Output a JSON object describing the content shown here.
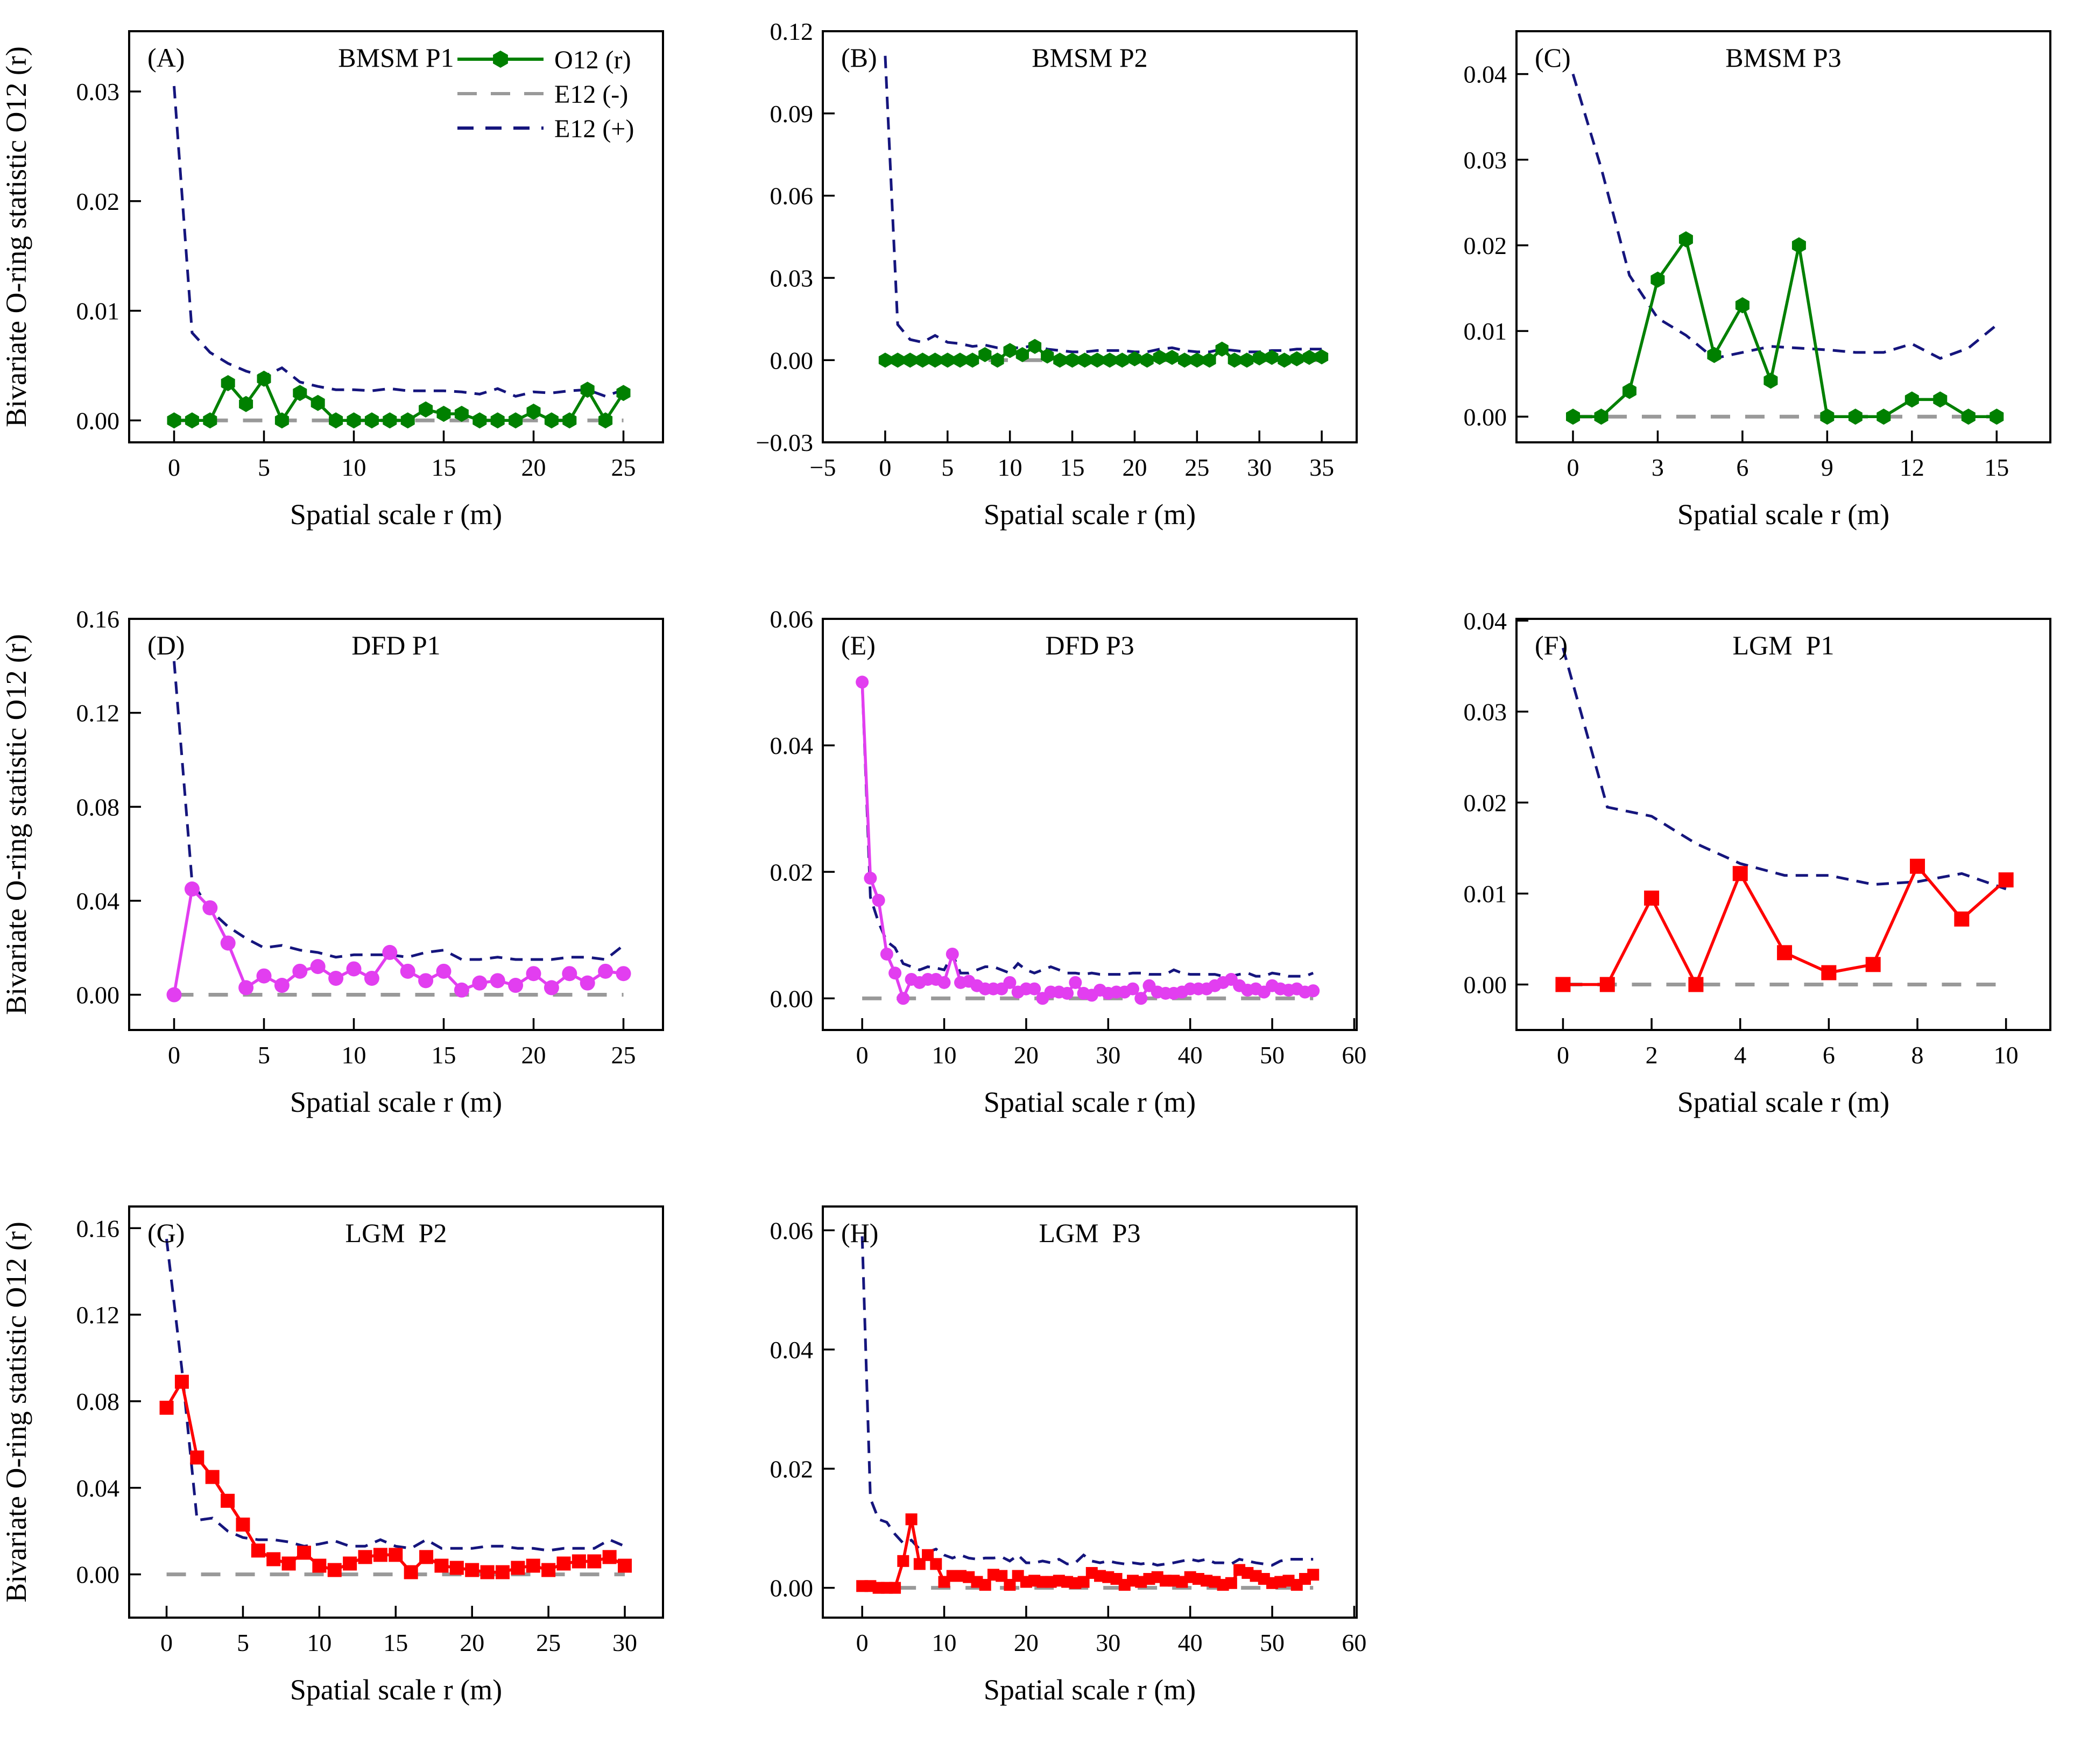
{
  "figure": {
    "ylabel": "Bivariate O-ring statistic O12 (r)",
    "xlabel": "Spatial scale r (m)",
    "legend": {
      "o12_label": "O12 (r)",
      "e12_minus_label": "E12 (-)",
      "e12_plus_label": "E12 (+)"
    },
    "colors": {
      "green": "#008000",
      "magenta": "#e23ef0",
      "red": "#fe0000",
      "envelope_upper": "#15157d",
      "envelope_lower": "#999999",
      "axis": "#000000",
      "background": "#ffffff"
    }
  },
  "chart_data": [
    {
      "id": "A",
      "type": "line",
      "panel_label": "(A)",
      "title": "BMSM P1",
      "color_key": "green",
      "marker": "hexagon",
      "marker_size": 15,
      "xlabel": "Spatial scale r (m)",
      "show_ylabel": true,
      "show_legend": true,
      "xlim": [
        -2.5,
        27.2
      ],
      "ylim": [
        -0.002,
        0.0355
      ],
      "xticks": [
        0,
        5,
        10,
        15,
        20,
        25
      ],
      "yticks": [
        0.0,
        0.01,
        0.02,
        0.03
      ],
      "y_decimals": 2,
      "x_start": 0,
      "x_step": 1,
      "o12": [
        0,
        0,
        0,
        0.0034,
        0.0015,
        0.0038,
        0,
        0.0025,
        0.0016,
        0,
        0,
        0,
        0,
        0,
        0.001,
        0.0006,
        0.0006,
        0,
        0,
        0,
        0.0008,
        0,
        0,
        0.0028,
        0,
        0.0025
      ],
      "e12_plus": [
        0.0305,
        0.008,
        0.0062,
        0.0052,
        0.0045,
        0.004,
        0.0048,
        0.0035,
        0.0031,
        0.0028,
        0.0028,
        0.0027,
        0.0029,
        0.0027,
        0.0027,
        0.0027,
        0.0026,
        0.0024,
        0.0029,
        0.0022,
        0.0026,
        0.0025,
        0.0027,
        0.0028,
        0.0022,
        0.0028
      ],
      "e12_minus_value": 0
    },
    {
      "id": "B",
      "type": "line",
      "panel_label": "(B)",
      "title": "BMSM P2",
      "color_key": "green",
      "marker": "hexagon",
      "marker_size": 14,
      "xlabel": "Spatial scale r (m)",
      "show_ylabel": false,
      "show_legend": false,
      "xlim": [
        -5,
        37.8
      ],
      "ylim": [
        -0.03,
        0.12
      ],
      "xticks": [
        -5,
        0,
        5,
        10,
        15,
        20,
        25,
        30,
        35
      ],
      "yticks": [
        -0.03,
        0.0,
        0.03,
        0.06,
        0.09,
        0.12
      ],
      "y_decimals": 2,
      "x_start": 0,
      "x_step": 1,
      "o12": [
        0,
        0,
        0,
        0,
        0,
        0,
        0,
        0,
        0.002,
        0,
        0.0035,
        0.002,
        0.005,
        0.0015,
        0,
        0,
        0,
        0,
        0,
        0,
        0.0005,
        0,
        0.001,
        0.001,
        0,
        0,
        0,
        0.004,
        0,
        0,
        0.0008,
        0.001,
        0,
        0.0005,
        0.001,
        0.0012
      ],
      "e12_plus": [
        0.111,
        0.013,
        0.0075,
        0.0065,
        0.009,
        0.0065,
        0.006,
        0.005,
        0.0055,
        0.0045,
        0.0045,
        0.0045,
        0.0055,
        0.004,
        0.0035,
        0.003,
        0.003,
        0.0035,
        0.0035,
        0.0035,
        0.003,
        0.003,
        0.004,
        0.0045,
        0.0035,
        0.003,
        0.003,
        0.004,
        0.0035,
        0.003,
        0.003,
        0.0035,
        0.0035,
        0.004,
        0.004,
        0.004
      ],
      "e12_minus_value": 0
    },
    {
      "id": "C",
      "type": "line",
      "panel_label": "(C)",
      "title": "BMSM P3",
      "color_key": "green",
      "marker": "hexagon",
      "marker_size": 15,
      "xlabel": "Spatial scale r (m)",
      "show_ylabel": false,
      "show_legend": false,
      "xlim": [
        -2,
        16.9
      ],
      "ylim": [
        -0.003,
        0.045
      ],
      "xticks": [
        0,
        3,
        6,
        9,
        12,
        15
      ],
      "yticks": [
        0.0,
        0.01,
        0.02,
        0.03,
        0.04
      ],
      "y_decimals": 2,
      "x_start": 0,
      "x_step": 1,
      "o12": [
        0,
        0,
        0.003,
        0.016,
        0.0207,
        0.0072,
        0.013,
        0.0042,
        0.02,
        0,
        0,
        0,
        0.002,
        0.002,
        0,
        0
      ],
      "e12_plus": [
        0.04,
        0.029,
        0.0165,
        0.0115,
        0.0095,
        0.0068,
        0.0075,
        0.0082,
        0.008,
        0.0078,
        0.0075,
        0.0075,
        0.0085,
        0.0068,
        0.008,
        0.0107
      ],
      "e12_minus_value": 0
    },
    {
      "id": "D",
      "type": "line",
      "panel_label": "(D)",
      "title": "DFD P1",
      "color_key": "magenta",
      "marker": "circle",
      "marker_size": 14,
      "xlabel": "Spatial scale r (m)",
      "show_ylabel": true,
      "show_legend": false,
      "xlim": [
        -2.5,
        27.2
      ],
      "ylim": [
        -0.015,
        0.16
      ],
      "xticks": [
        0,
        5,
        10,
        15,
        20,
        25
      ],
      "yticks": [
        0.0,
        0.04,
        0.08,
        0.12,
        0.16
      ],
      "y_decimals": 2,
      "x_start": 0,
      "x_step": 1,
      "o12": [
        0,
        0.045,
        0.037,
        0.022,
        0.003,
        0.008,
        0.004,
        0.01,
        0.012,
        0.007,
        0.011,
        0.007,
        0.018,
        0.01,
        0.006,
        0.01,
        0.002,
        0.005,
        0.006,
        0.004,
        0.009,
        0.003,
        0.009,
        0.005,
        0.01,
        0.009
      ],
      "e12_plus": [
        0.142,
        0.048,
        0.036,
        0.029,
        0.024,
        0.02,
        0.021,
        0.019,
        0.018,
        0.016,
        0.017,
        0.017,
        0.017,
        0.016,
        0.018,
        0.019,
        0.015,
        0.015,
        0.016,
        0.015,
        0.015,
        0.015,
        0.016,
        0.016,
        0.015,
        0.021
      ],
      "e12_minus_value": 0
    },
    {
      "id": "E",
      "type": "line",
      "panel_label": "(E)",
      "title": "DFD P3",
      "color_key": "magenta",
      "marker": "circle",
      "marker_size": 12,
      "xlabel": "Spatial scale r (m)",
      "show_ylabel": false,
      "show_legend": false,
      "xlim": [
        -4.8,
        60.3
      ],
      "ylim": [
        -0.005,
        0.06
      ],
      "xticks": [
        0,
        10,
        20,
        30,
        40,
        50,
        60
      ],
      "yticks": [
        0.0,
        0.02,
        0.04,
        0.06
      ],
      "y_decimals": 2,
      "x_start": 0,
      "x_step": 1,
      "o12": [
        0.05,
        0.019,
        0.0155,
        0.007,
        0.004,
        0,
        0.003,
        0.0025,
        0.003,
        0.003,
        0.0025,
        0.007,
        0.0025,
        0.0027,
        0.002,
        0.0015,
        0.0015,
        0.0015,
        0.0025,
        0.001,
        0.0015,
        0.0015,
        0,
        0.001,
        0.001,
        0.0008,
        0.0025,
        0.0008,
        0.0005,
        0.0013,
        0.0008,
        0.001,
        0.001,
        0.0015,
        0,
        0.002,
        0.001,
        0.0008,
        0.0008,
        0.001,
        0.0015,
        0.0015,
        0.0015,
        0.002,
        0.0025,
        0.003,
        0.002,
        0.0013,
        0.0015,
        0.001,
        0.002,
        0.0015,
        0.0013,
        0.0015,
        0.001,
        0.0012
      ],
      "e12_plus": [
        0.05,
        0.016,
        0.012,
        0.009,
        0.008,
        0.0055,
        0.005,
        0.0045,
        0.005,
        0.0048,
        0.0045,
        0.007,
        0.004,
        0.004,
        0.0045,
        0.005,
        0.005,
        0.0045,
        0.004,
        0.0055,
        0.0045,
        0.004,
        0.0045,
        0.005,
        0.0045,
        0.004,
        0.004,
        0.0038,
        0.004,
        0.0038,
        0.0038,
        0.0038,
        0.0038,
        0.004,
        0.004,
        0.0038,
        0.0038,
        0.0038,
        0.0045,
        0.004,
        0.0038,
        0.0038,
        0.0038,
        0.0038,
        0.0035,
        0.0035,
        0.0038,
        0.004,
        0.0035,
        0.0035,
        0.004,
        0.0038,
        0.0035,
        0.0035,
        0.0035,
        0.004
      ],
      "e12_minus_value": 0
    },
    {
      "id": "F",
      "type": "line",
      "panel_label": "(F)",
      "title": "LGM  P1",
      "color_key": "red",
      "marker": "square",
      "marker_size": 14,
      "xlabel": "Spatial scale r (m)",
      "show_ylabel": false,
      "show_legend": false,
      "xlim": [
        -1.05,
        11
      ],
      "ylim": [
        -0.005,
        0.0402
      ],
      "xticks": [
        0,
        2,
        4,
        6,
        8,
        10
      ],
      "yticks": [
        0.0,
        0.01,
        0.02,
        0.03,
        0.04
      ],
      "y_decimals": 2,
      "x_start": 0,
      "x_step": 1,
      "o12": [
        0,
        0,
        0.0095,
        0,
        0.0122,
        0.0035,
        0.0013,
        0.0022,
        0.013,
        0.0072,
        0.0115
      ],
      "e12_plus": [
        0.037,
        0.0195,
        0.0185,
        0.0155,
        0.0133,
        0.012,
        0.012,
        0.011,
        0.0113,
        0.0122,
        0.0105
      ],
      "e12_minus_value": 0
    },
    {
      "id": "G",
      "type": "line",
      "panel_label": "(G)",
      "title": "LGM  P2",
      "color_key": "red",
      "marker": "square",
      "marker_size": 13,
      "xlabel": "Spatial scale r (m)",
      "show_ylabel": true,
      "show_legend": false,
      "xlim": [
        -2.45,
        32.5
      ],
      "ylim": [
        -0.02,
        0.17
      ],
      "xticks": [
        0,
        5,
        10,
        15,
        20,
        25,
        30
      ],
      "yticks": [
        0.0,
        0.04,
        0.08,
        0.12,
        0.16
      ],
      "y_decimals": 2,
      "x_start": 0,
      "x_step": 1,
      "o12": [
        0.077,
        0.089,
        0.054,
        0.045,
        0.034,
        0.023,
        0.011,
        0.007,
        0.005,
        0.01,
        0.004,
        0.002,
        0.005,
        0.008,
        0.009,
        0.009,
        0.001,
        0.008,
        0.004,
        0.003,
        0.002,
        0.001,
        0.001,
        0.003,
        0.004,
        0.002,
        0.005,
        0.006,
        0.006,
        0.008,
        0.004
      ],
      "e12_plus": [
        0.155,
        0.095,
        0.025,
        0.026,
        0.02,
        0.017,
        0.016,
        0.016,
        0.015,
        0.013,
        0.014,
        0.0155,
        0.013,
        0.013,
        0.016,
        0.013,
        0.012,
        0.016,
        0.012,
        0.012,
        0.012,
        0.013,
        0.013,
        0.012,
        0.012,
        0.011,
        0.012,
        0.012,
        0.012,
        0.016,
        0.013
      ],
      "e12_minus_value": 0
    },
    {
      "id": "H",
      "type": "line",
      "panel_label": "(H)",
      "title": "LGM  P3",
      "color_key": "red",
      "marker": "square",
      "marker_size": 11,
      "xlabel": "Spatial scale r (m)",
      "show_ylabel": false,
      "show_legend": false,
      "xlim": [
        -4.8,
        60.3
      ],
      "ylim": [
        -0.005,
        0.064
      ],
      "xticks": [
        0,
        10,
        20,
        30,
        40,
        50,
        60
      ],
      "yticks": [
        0.0,
        0.02,
        0.04,
        0.06
      ],
      "y_decimals": 2,
      "x_start": 0,
      "x_step": 1,
      "o12": [
        0.0003,
        0.0003,
        0,
        0,
        0,
        0.0045,
        0.0115,
        0.004,
        0.0055,
        0.004,
        0.001,
        0.002,
        0.002,
        0.0018,
        0.001,
        0.0005,
        0.0022,
        0.002,
        0.0005,
        0.002,
        0.001,
        0.0012,
        0.001,
        0.001,
        0.0012,
        0.001,
        0.0008,
        0.001,
        0.0025,
        0.002,
        0.0018,
        0.0015,
        0.0005,
        0.0012,
        0.001,
        0.0015,
        0.0018,
        0.0012,
        0.0012,
        0.001,
        0.0018,
        0.0015,
        0.0012,
        0.001,
        0.0005,
        0.0008,
        0.003,
        0.0025,
        0.002,
        0.0015,
        0.0008,
        0.001,
        0.0012,
        0.0005,
        0.0015,
        0.0022
      ],
      "e12_plus": [
        0.059,
        0.015,
        0.0115,
        0.011,
        0.009,
        0.0075,
        0.008,
        0.0065,
        0.006,
        0.0065,
        0.0055,
        0.005,
        0.0055,
        0.005,
        0.0048,
        0.005,
        0.005,
        0.0052,
        0.0045,
        0.0055,
        0.0042,
        0.0042,
        0.0045,
        0.0042,
        0.0048,
        0.004,
        0.0042,
        0.0055,
        0.0045,
        0.0042,
        0.0045,
        0.0042,
        0.004,
        0.0042,
        0.004,
        0.0042,
        0.0038,
        0.004,
        0.0042,
        0.0045,
        0.0048,
        0.0045,
        0.0048,
        0.0042,
        0.0042,
        0.004,
        0.0048,
        0.0045,
        0.0042,
        0.004,
        0.0038,
        0.0045,
        0.0048,
        0.0048,
        0.0048,
        0.0048
      ],
      "e12_minus_value": 0
    }
  ]
}
